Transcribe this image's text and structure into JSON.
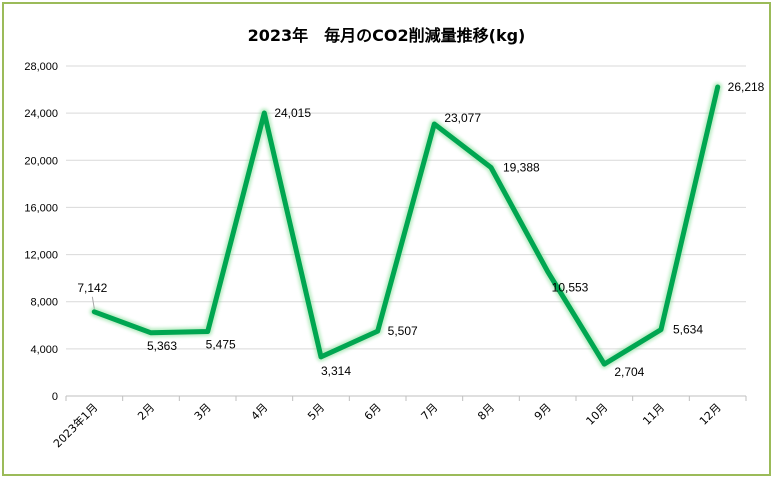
{
  "chart_data": {
    "type": "line",
    "title": "2023年　毎月のCO2削減量推移(kg)",
    "categories": [
      "2023年1月",
      "2月",
      "3月",
      "4月",
      "5月",
      "6月",
      "7月",
      "8月",
      "9月",
      "10月",
      "11月",
      "12月"
    ],
    "series": [
      {
        "values": [
          7142,
          5363,
          5475,
          24015,
          3314,
          5507,
          23077,
          19388,
          10553,
          2704,
          5634,
          26218
        ]
      }
    ],
    "data_labels": [
      "7,142",
      "5,363",
      "5,475",
      "24,015",
      "3,314",
      "5,507",
      "23,077",
      "19,388",
      "10,553",
      "2,704",
      "5,634",
      "26,218"
    ],
    "ylim": [
      0,
      28000
    ],
    "yticks": [
      0,
      4000,
      8000,
      12000,
      16000,
      20000,
      24000,
      28000
    ],
    "ytick_labels": [
      "0",
      "4,000",
      "8,000",
      "12,000",
      "16,000",
      "20,000",
      "24,000",
      "28,000"
    ],
    "grid": true,
    "line_color": "#00a651",
    "frame_color": "#9bbb59"
  }
}
